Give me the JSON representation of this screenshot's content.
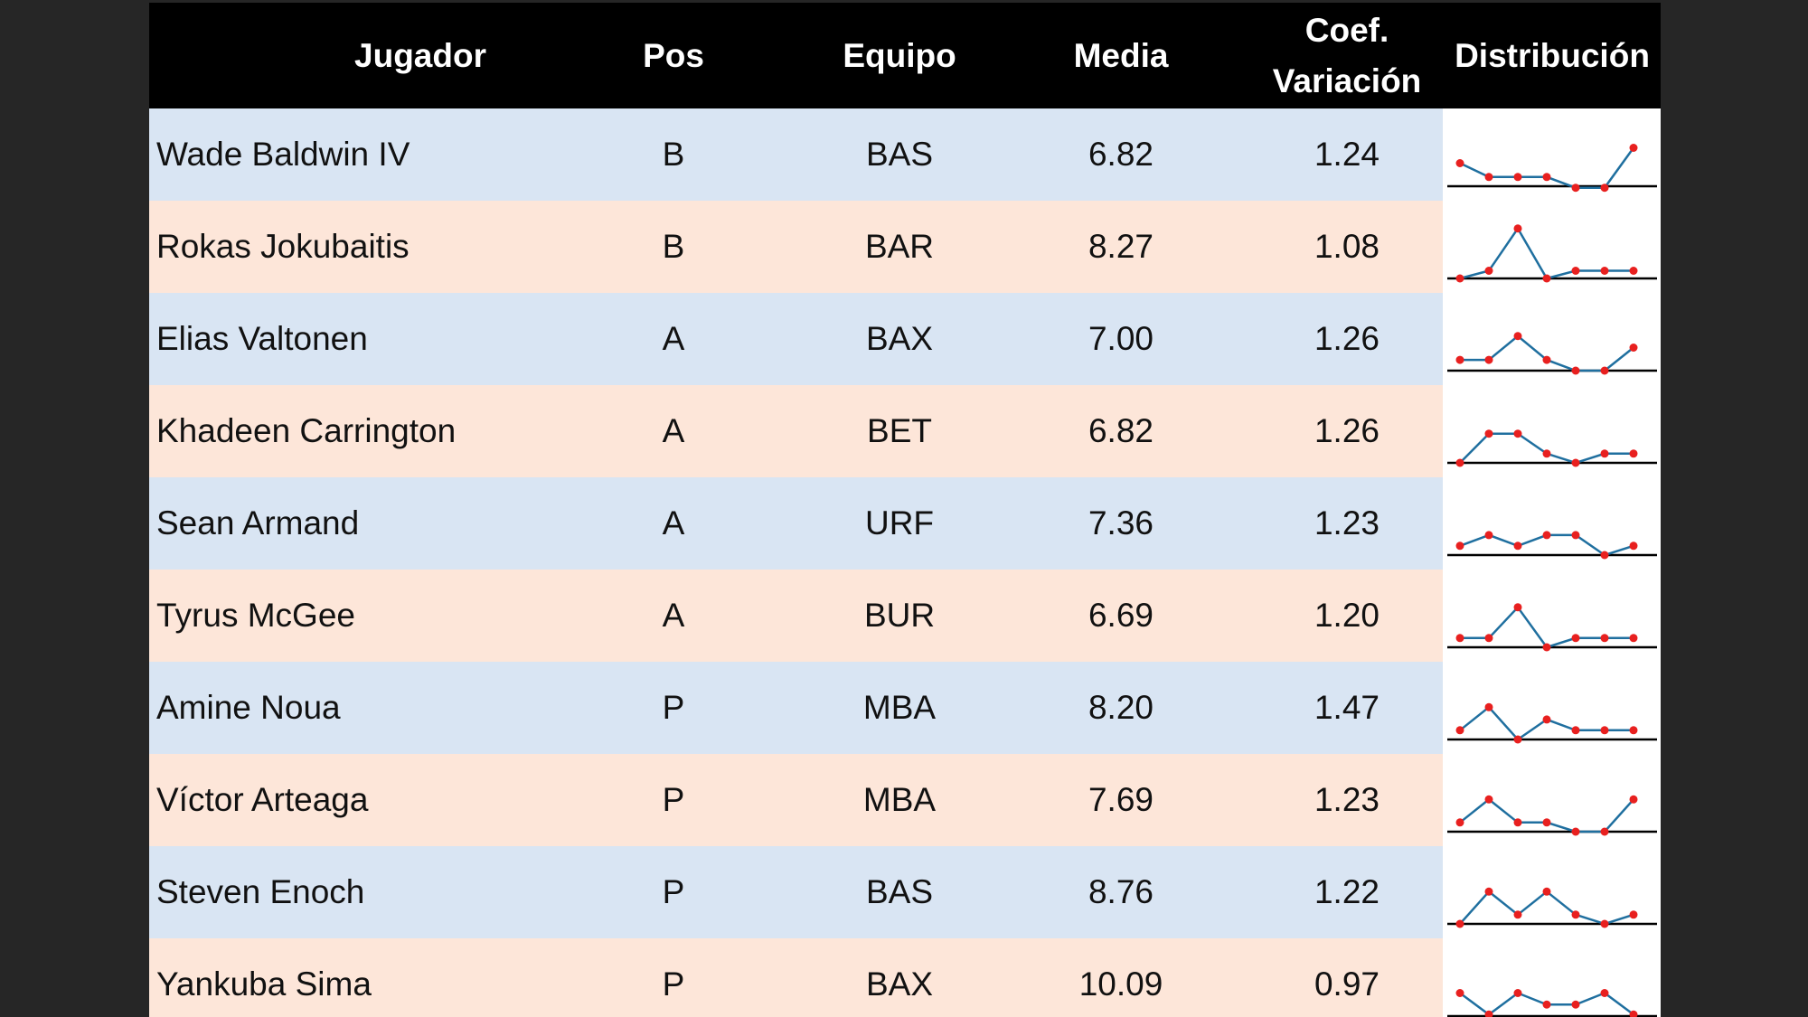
{
  "table": {
    "headers": {
      "player": "Jugador",
      "position": "Pos",
      "team": "Equipo",
      "mean": "Media",
      "cv_line1": "Coef.",
      "cv_line2": "Variación",
      "distribution": "Distribución"
    },
    "colors": {
      "header_bg": "#000000",
      "row_blue": "#d9e5f3",
      "row_peach": "#fde6d9",
      "spark_line": "#1f6f9f",
      "spark_point": "#e8201f"
    },
    "rows": [
      {
        "player": "Wade Baldwin IV",
        "position": "B",
        "team": "BAS",
        "mean": "6.82",
        "cv": "1.24",
        "spark": [
          0.3,
          0.12,
          0.12,
          0.12,
          -0.02,
          -0.02,
          0.5
        ]
      },
      {
        "player": "Rokas Jokubaitis",
        "position": "B",
        "team": "BAR",
        "mean": "8.27",
        "cv": "1.08",
        "spark": [
          0.0,
          0.1,
          0.65,
          0.0,
          0.1,
          0.1,
          0.1
        ]
      },
      {
        "player": "Elias Valtonen",
        "position": "A",
        "team": "BAX",
        "mean": "7.00",
        "cv": "1.26",
        "spark": [
          0.14,
          0.14,
          0.45,
          0.14,
          0.0,
          0.0,
          0.3
        ]
      },
      {
        "player": "Khadeen Carrington",
        "position": "A",
        "team": "BET",
        "mean": "6.82",
        "cv": "1.26",
        "spark": [
          0.0,
          0.38,
          0.38,
          0.12,
          0.0,
          0.12,
          0.12
        ]
      },
      {
        "player": "Sean Armand",
        "position": "A",
        "team": "URF",
        "mean": "7.36",
        "cv": "1.23",
        "spark": [
          0.12,
          0.26,
          0.12,
          0.26,
          0.26,
          0.0,
          0.12
        ]
      },
      {
        "player": "Tyrus McGee",
        "position": "A",
        "team": "BUR",
        "mean": "6.69",
        "cv": "1.20",
        "spark": [
          0.12,
          0.12,
          0.52,
          0.0,
          0.12,
          0.12,
          0.12
        ]
      },
      {
        "player": "Amine Noua",
        "position": "P",
        "team": "MBA",
        "mean": "8.20",
        "cv": "1.47",
        "spark": [
          0.12,
          0.42,
          0.0,
          0.26,
          0.12,
          0.12,
          0.12
        ]
      },
      {
        "player": "Víctor Arteaga",
        "position": "P",
        "team": "MBA",
        "mean": "7.69",
        "cv": "1.23",
        "spark": [
          0.12,
          0.42,
          0.12,
          0.12,
          0.0,
          0.0,
          0.42
        ]
      },
      {
        "player": "Steven Enoch",
        "position": "P",
        "team": "BAS",
        "mean": "8.76",
        "cv": "1.22",
        "spark": [
          0.0,
          0.42,
          0.12,
          0.42,
          0.12,
          0.0,
          0.12
        ]
      },
      {
        "player": "Yankuba Sima",
        "position": "P",
        "team": "BAX",
        "mean": "10.09",
        "cv": "0.97",
        "spark": [
          0.3,
          0.02,
          0.3,
          0.15,
          0.15,
          0.3,
          0.02
        ]
      }
    ]
  }
}
